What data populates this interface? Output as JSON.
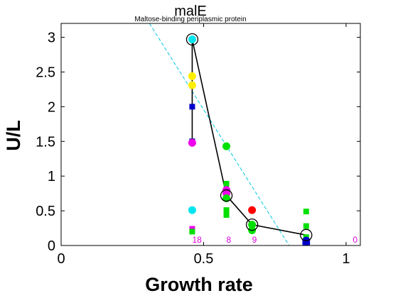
{
  "chart_data": {
    "type": "scatter",
    "title": "malE",
    "subtitle": "Maltose-binding periplasmic protein",
    "xlabel": "Growth rate",
    "ylabel": "U/L",
    "xlim": [
      0,
      1.05
    ],
    "ylim": [
      0,
      3.2
    ],
    "x_ticks": [
      0,
      0.5,
      1
    ],
    "x_tick_labels": [
      "0",
      "0.5",
      "1"
    ],
    "y_ticks": [
      0,
      0.5,
      1,
      1.5,
      2,
      2.5,
      3
    ],
    "y_tick_labels": [
      "0",
      "0.5",
      "1",
      "1.5",
      "2",
      "2.5",
      "3"
    ],
    "grid": false,
    "colors": {
      "yellow": "#ffee00",
      "blue": "#0000cc",
      "navy": "#000099",
      "magenta": "#ee00ee",
      "cyan": "#00e5ee",
      "green": "#00e000",
      "red": "#ff0000",
      "trend": "#00c8e0",
      "mean": "#000000",
      "counts": "#dd00dd"
    },
    "points": [
      {
        "x": 0.46,
        "y": 2.44,
        "shape": "circle",
        "color": "yellow"
      },
      {
        "x": 0.46,
        "y": 2.31,
        "shape": "circle",
        "color": "yellow"
      },
      {
        "x": 0.46,
        "y": 2.0,
        "shape": "square",
        "color": "blue"
      },
      {
        "x": 0.46,
        "y": 1.5,
        "shape": "square",
        "color": "navy"
      },
      {
        "x": 0.46,
        "y": 1.48,
        "shape": "circle",
        "color": "magenta"
      },
      {
        "x": 0.46,
        "y": 0.51,
        "shape": "circle",
        "color": "cyan"
      },
      {
        "x": 0.46,
        "y": 0.24,
        "shape": "square",
        "color": "magenta"
      },
      {
        "x": 0.46,
        "y": 0.2,
        "shape": "square",
        "color": "green"
      },
      {
        "x": 0.46,
        "y": 2.97,
        "shape": "circle",
        "color": "cyan"
      },
      {
        "x": 0.58,
        "y": 1.43,
        "shape": "circle",
        "color": "green"
      },
      {
        "x": 0.58,
        "y": 0.89,
        "shape": "square",
        "color": "green"
      },
      {
        "x": 0.58,
        "y": 0.8,
        "shape": "circle",
        "color": "magenta"
      },
      {
        "x": 0.58,
        "y": 0.75,
        "shape": "circle",
        "color": "magenta"
      },
      {
        "x": 0.58,
        "y": 0.68,
        "shape": "circle",
        "color": "green"
      },
      {
        "x": 0.58,
        "y": 0.51,
        "shape": "square",
        "color": "green"
      },
      {
        "x": 0.58,
        "y": 0.44,
        "shape": "square",
        "color": "green"
      },
      {
        "x": 0.67,
        "y": 0.51,
        "shape": "circle",
        "color": "red"
      },
      {
        "x": 0.67,
        "y": 0.3,
        "shape": "circle",
        "color": "green"
      },
      {
        "x": 0.67,
        "y": 0.22,
        "shape": "circle",
        "color": "green"
      },
      {
        "x": 0.86,
        "y": 0.49,
        "shape": "square",
        "color": "green"
      },
      {
        "x": 0.86,
        "y": 0.28,
        "shape": "square",
        "color": "green"
      },
      {
        "x": 0.86,
        "y": 0.12,
        "shape": "square",
        "color": "green"
      },
      {
        "x": 0.86,
        "y": 0.07,
        "shape": "circle",
        "color": "blue"
      },
      {
        "x": 0.86,
        "y": 0.03,
        "shape": "circle",
        "color": "blue"
      }
    ],
    "mean_series": {
      "x": [
        0.46,
        0.46,
        0.58,
        0.67,
        0.86
      ],
      "y": [
        1.5,
        2.97,
        0.72,
        0.3,
        0.15
      ]
    },
    "trend_line": {
      "x": [
        0.31,
        0.8
      ],
      "y": [
        3.2,
        0.0
      ]
    },
    "count_labels": [
      {
        "x": 0.46,
        "text": "18"
      },
      {
        "x": 0.58,
        "text": "8"
      },
      {
        "x": 0.67,
        "text": "9"
      },
      {
        "x": 1.05,
        "text": "0"
      }
    ]
  }
}
